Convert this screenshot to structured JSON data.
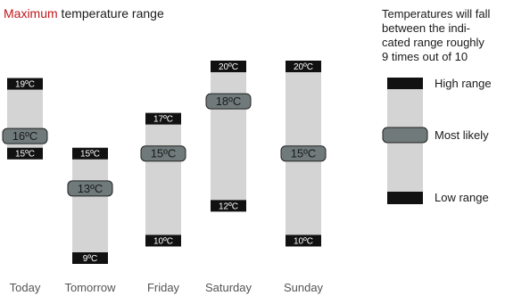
{
  "title": {
    "accent": "Maximum",
    "rest": " temperature range"
  },
  "legend": {
    "note_lines": [
      "Temperatures will fall",
      "between the indi-",
      "cated range roughly",
      "9 times out of 10"
    ],
    "high_label": "High range",
    "likely_label": "Most likely",
    "low_label": "Low range"
  },
  "colors": {
    "range_band": "#d4d4d4",
    "end_cap": "#111111",
    "likely_pill": "#707a7a",
    "accent": "#c0161c"
  },
  "chart_data": {
    "type": "range",
    "unit": "°C",
    "categories": [
      "Today",
      "Tomorrow",
      "Friday",
      "Saturday",
      "Sunday"
    ],
    "high": [
      19,
      15,
      17,
      20,
      20
    ],
    "low": [
      15,
      9,
      10,
      12,
      10
    ],
    "most_likely": [
      16,
      13,
      15,
      18,
      15
    ],
    "high_labels": [
      "19ºC",
      "15ºC",
      "17ºC",
      "20ºC",
      "20ºC"
    ],
    "low_labels": [
      "15ºC",
      "9ºC",
      "10ºC",
      "12ºC",
      "10ºC"
    ],
    "likely_labels": [
      "16ºC",
      "13ºC",
      "15ºC",
      "18ºC",
      "15ºC"
    ]
  }
}
